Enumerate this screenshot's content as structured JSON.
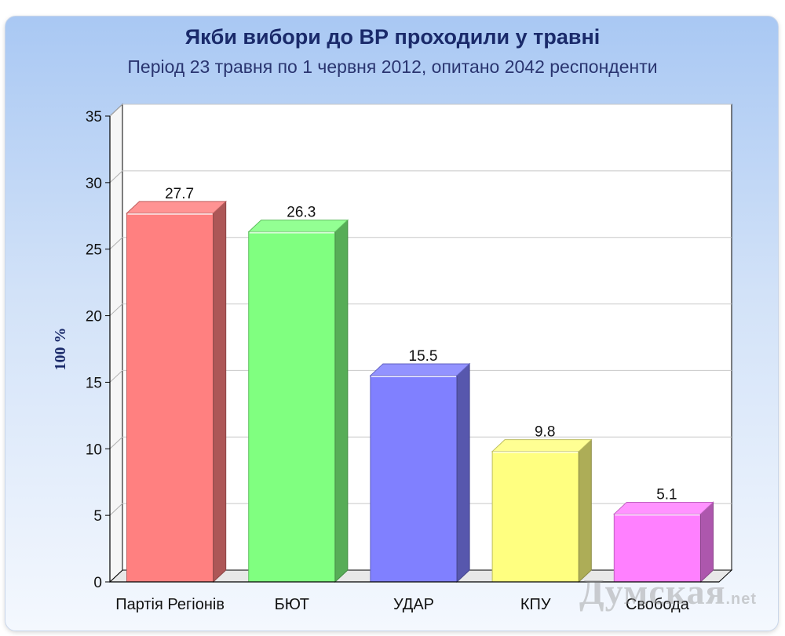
{
  "watermark": {
    "main": "Думская",
    "suffix": ".net"
  },
  "chart_data": {
    "type": "bar",
    "title": "Якби вибори до ВР проходили у травні",
    "subtitle": "Період 23 травня по 1 червня 2012, опитано 2042 респонденти",
    "xlabel": "",
    "ylabel": "100 %",
    "ylim": [
      0,
      35
    ],
    "yticks": [
      0,
      5,
      10,
      15,
      20,
      25,
      30,
      35
    ],
    "grid": true,
    "legend": "none",
    "categories": [
      "Партія Регіонів",
      "БЮТ",
      "УДАР",
      "КПУ",
      "Свобода"
    ],
    "values": [
      27.7,
      26.3,
      15.5,
      9.8,
      5.1
    ],
    "value_labels": [
      "27.7",
      "26.3",
      "15.5",
      "9.8",
      "5.1"
    ],
    "colors": [
      "#ff8080",
      "#80ff80",
      "#8080ff",
      "#ffff80",
      "#ff80ff"
    ]
  }
}
